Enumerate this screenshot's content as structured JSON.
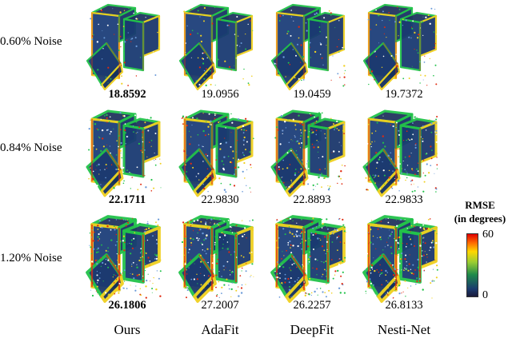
{
  "rows": [
    {
      "label": "0.60% Noise",
      "values": [
        "18.8592",
        "19.0956",
        "19.0459",
        "19.7372"
      ],
      "best_index": 0,
      "noise": 0
    },
    {
      "label": "0.84% Noise",
      "values": [
        "22.1711",
        "22.9830",
        "22.8893",
        "22.9833"
      ],
      "best_index": 0,
      "noise": 1
    },
    {
      "label": "1.20% Noise",
      "values": [
        "26.1806",
        "27.2007",
        "26.2257",
        "26.8133"
      ],
      "best_index": 0,
      "noise": 2
    }
  ],
  "columns": [
    "Ours",
    "AdaFit",
    "DeepFit",
    "Nesti-Net"
  ],
  "legend": {
    "title_line1": "RMSE",
    "title_line2": "(in degrees)",
    "max": "60",
    "min": "0"
  },
  "colors": {
    "dark": "#18223f",
    "body": "#1d3f7a",
    "edge_green": "#22c24a",
    "edge_yellow": "#f0d020",
    "edge_red": "#e02a10"
  }
}
